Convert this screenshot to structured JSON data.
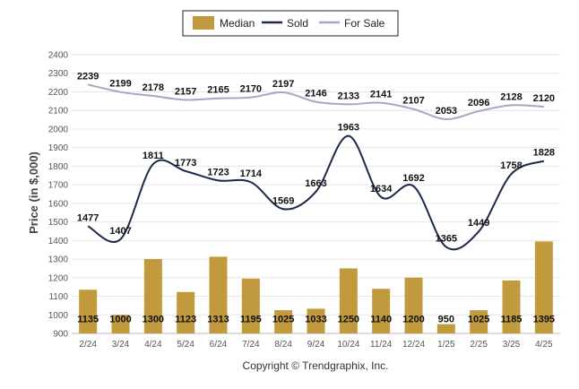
{
  "chart_data": {
    "type": "bar",
    "categories": [
      "2/24",
      "3/24",
      "4/24",
      "5/24",
      "6/24",
      "7/24",
      "8/24",
      "9/24",
      "10/24",
      "11/24",
      "12/24",
      "1/25",
      "2/25",
      "3/25",
      "4/25"
    ],
    "series": [
      {
        "name": "Median",
        "kind": "bar",
        "color": "#C19A3E",
        "values": [
          1135,
          1000,
          1300,
          1123,
          1313,
          1195,
          1025,
          1033,
          1250,
          1140,
          1200,
          950,
          1025,
          1185,
          1395
        ]
      },
      {
        "name": "Sold",
        "kind": "line",
        "color": "#1B2A4A",
        "values": [
          1477,
          1407,
          1811,
          1773,
          1723,
          1714,
          1569,
          1663,
          1963,
          1634,
          1692,
          1365,
          1449,
          1758,
          1828
        ]
      },
      {
        "name": "For Sale",
        "kind": "line",
        "color": "#A3A9C4",
        "values": [
          2239,
          2199,
          2178,
          2157,
          2165,
          2170,
          2197,
          2146,
          2133,
          2141,
          2107,
          2053,
          2096,
          2128,
          2120
        ]
      }
    ],
    "ylabel": "Price (in $,000)",
    "ylim": [
      900,
      2400
    ],
    "yticks": [
      900,
      1000,
      1100,
      1200,
      1300,
      1400,
      1500,
      1600,
      1700,
      1800,
      1900,
      2000,
      2100,
      2200,
      2300,
      2400
    ],
    "grid": true,
    "legend": "top-center",
    "copyright": "Copyright © Trendgraphix, Inc."
  }
}
